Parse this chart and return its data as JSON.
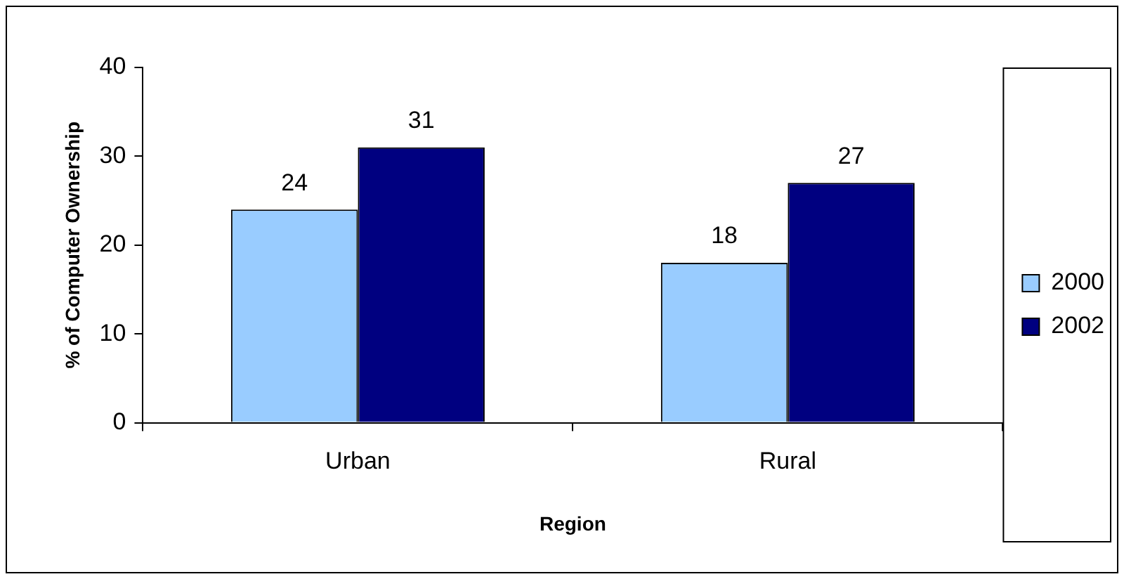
{
  "chart_data": {
    "type": "bar",
    "xlabel": "Region",
    "ylabel": "% of Computer Ownership",
    "categories": [
      "Urban",
      "Rural"
    ],
    "series": [
      {
        "name": "2000",
        "color": "#99ccff",
        "values": [
          24,
          18
        ]
      },
      {
        "name": "2002",
        "color": "#000080",
        "values": [
          31,
          27
        ]
      }
    ],
    "ylim": [
      0,
      40
    ],
    "yticks": [
      0,
      10,
      20,
      30,
      40
    ],
    "grid": false,
    "legend": "right",
    "data_labels": true
  }
}
